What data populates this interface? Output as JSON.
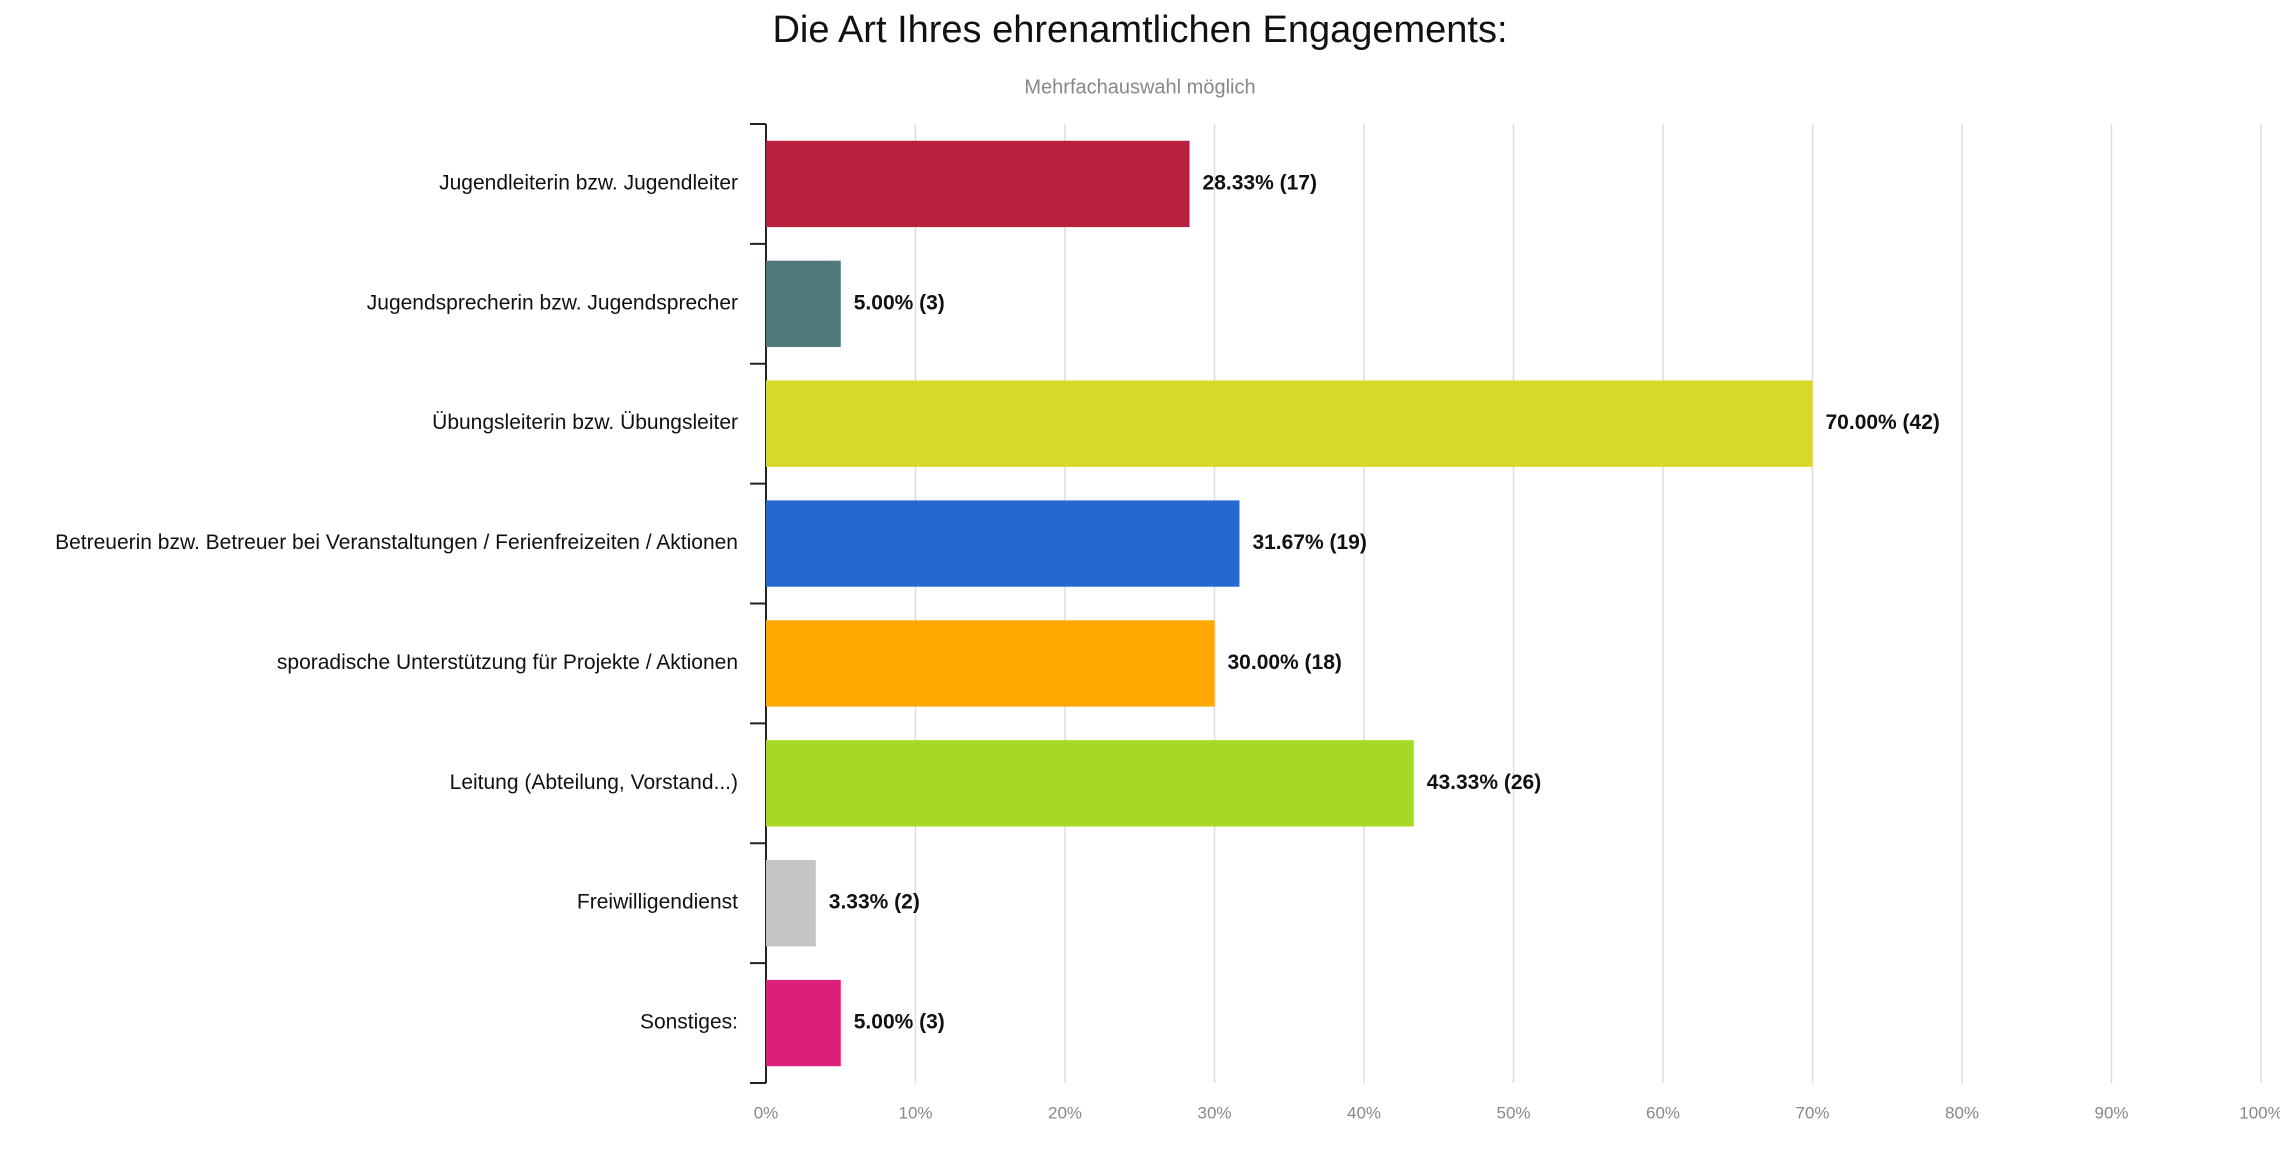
{
  "chart_data": {
    "type": "bar",
    "orientation": "horizontal",
    "title": "Die Art Ihres ehrenamtlichen Engagements:",
    "subtitle": "Mehrfachauswahl möglich",
    "categories": [
      "Jugendleiterin bzw. Jugendleiter",
      "Jugendsprecherin bzw. Jugendsprecher",
      "Übungsleiterin bzw. Übungsleiter",
      "Betreuerin bzw. Betreuer bei Veranstaltungen / Ferienfreizeiten / Aktionen",
      "sporadische Unterstützung für Projekte / Aktionen",
      "Leitung (Abteilung, Vorstand...)",
      "Freiwilligendienst",
      "Sonstiges:"
    ],
    "values": [
      28.33,
      5.0,
      70.0,
      31.67,
      30.0,
      43.33,
      3.33,
      5.0
    ],
    "value_labels": [
      "28.33% (17)",
      "5.00% (3)",
      "70.00% (42)",
      "31.67% (19)",
      "30.00% (18)",
      "43.33% (26)",
      "3.33% (2)",
      "5.00% (3)"
    ],
    "colors": [
      "#b8203f",
      "#4e7a7e",
      "#d6d929",
      "#2569cf",
      "#fea800",
      "#a6d926",
      "#c4c4c4",
      "#dc1f79"
    ],
    "xlim": [
      0,
      100
    ],
    "xticks": [
      {
        "value": 0,
        "label": "0%"
      },
      {
        "value": 10,
        "label": "10%"
      },
      {
        "value": 20,
        "label": "20%"
      },
      {
        "value": 30,
        "label": "30%"
      },
      {
        "value": 40,
        "label": "40%"
      },
      {
        "value": 50,
        "label": "50%"
      },
      {
        "value": 60,
        "label": "60%"
      },
      {
        "value": 70,
        "label": "70%"
      },
      {
        "value": 80,
        "label": "80%"
      },
      {
        "value": 90,
        "label": "90%"
      },
      {
        "value": 100,
        "label": "100%"
      }
    ],
    "grid": true
  }
}
